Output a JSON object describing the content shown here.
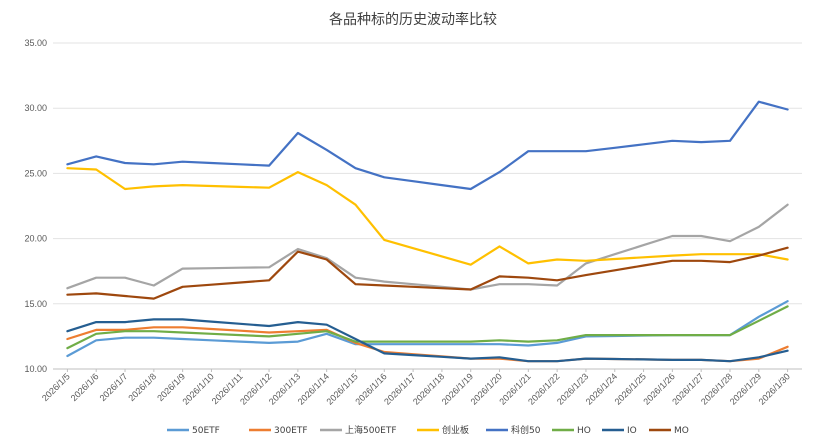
{
  "chart_data": {
    "type": "line",
    "title": "各品种标的历史波动率比较",
    "xlabel": "",
    "ylabel": "",
    "ylim": [
      10,
      35
    ],
    "yticks": [
      "10.00",
      "15.00",
      "20.00",
      "25.00",
      "30.00",
      "35.00"
    ],
    "grid": "horizontal",
    "legend_position": "bottom",
    "x": [
      "2026/1/5",
      "2026/1/6",
      "2026/1/7",
      "2026/1/8",
      "2026/1/9",
      "2026/1/10",
      "2026/1/11",
      "2026/1/12",
      "2026/1/13",
      "2026/1/14",
      "2026/1/15",
      "2026/1/16",
      "2026/1/17",
      "2026/1/18",
      "2026/1/19",
      "2026/1/20",
      "2026/1/21",
      "2026/1/22",
      "2026/1/23",
      "2026/1/24",
      "2026/1/25",
      "2026/1/26",
      "2026/1/27",
      "2026/1/28",
      "2026/1/29",
      "2026/1/30"
    ],
    "series": [
      {
        "name": "50ETF",
        "color": "#5b9bd5",
        "values": [
          11.0,
          12.2,
          12.4,
          12.4,
          12.3,
          null,
          null,
          12.0,
          12.1,
          12.7,
          11.9,
          11.9,
          null,
          null,
          11.9,
          11.9,
          11.8,
          12.0,
          12.5,
          null,
          null,
          12.6,
          12.6,
          12.6,
          14.0,
          15.2
        ]
      },
      {
        "name": "300ETF",
        "color": "#ed7d31",
        "values": [
          12.3,
          13.0,
          13.0,
          13.2,
          13.2,
          null,
          null,
          12.8,
          12.9,
          13.0,
          12.0,
          11.3,
          null,
          null,
          10.8,
          10.8,
          10.6,
          10.6,
          10.8,
          null,
          null,
          10.7,
          10.7,
          10.6,
          10.8,
          11.7
        ]
      },
      {
        "name": "上海500ETF",
        "color": "#a5a5a5",
        "values": [
          16.2,
          17.0,
          17.0,
          16.4,
          17.7,
          null,
          null,
          17.8,
          19.2,
          18.5,
          17.0,
          16.7,
          null,
          null,
          16.1,
          16.5,
          16.5,
          16.4,
          18.1,
          null,
          null,
          20.2,
          20.2,
          19.8,
          20.9,
          22.6
        ]
      },
      {
        "name": "创业板",
        "color": "#ffc000",
        "values": [
          25.4,
          25.3,
          23.8,
          24.0,
          24.1,
          null,
          null,
          23.9,
          25.1,
          24.1,
          22.6,
          19.9,
          null,
          null,
          18.0,
          19.4,
          18.1,
          18.4,
          18.3,
          null,
          null,
          18.7,
          18.8,
          18.8,
          18.8,
          18.4
        ]
      },
      {
        "name": "科创50",
        "color": "#4472c4",
        "values": [
          25.7,
          26.3,
          25.8,
          25.7,
          25.9,
          null,
          null,
          25.6,
          28.1,
          26.8,
          25.4,
          24.7,
          null,
          null,
          23.8,
          25.1,
          26.7,
          26.7,
          26.7,
          null,
          null,
          27.5,
          27.4,
          27.5,
          30.5,
          29.9
        ]
      },
      {
        "name": "HO",
        "color": "#70ad47",
        "values": [
          11.6,
          12.7,
          12.9,
          12.9,
          12.8,
          null,
          null,
          12.5,
          12.7,
          12.9,
          12.1,
          12.1,
          null,
          null,
          12.1,
          12.2,
          12.1,
          12.2,
          12.6,
          null,
          null,
          12.6,
          12.6,
          12.6,
          13.7,
          14.8
        ]
      },
      {
        "name": "IO",
        "color": "#255e91",
        "values": [
          12.9,
          13.6,
          13.6,
          13.8,
          13.8,
          null,
          null,
          13.3,
          13.6,
          13.4,
          12.3,
          11.2,
          null,
          null,
          10.8,
          10.9,
          10.6,
          10.6,
          10.8,
          null,
          null,
          10.7,
          10.7,
          10.6,
          10.9,
          11.4
        ]
      },
      {
        "name": "MO",
        "color": "#9e480e",
        "values": [
          15.7,
          15.8,
          15.6,
          15.4,
          16.3,
          null,
          null,
          16.8,
          19.0,
          18.4,
          16.5,
          16.4,
          null,
          null,
          16.1,
          17.1,
          17.0,
          16.8,
          17.2,
          null,
          null,
          18.3,
          18.3,
          18.2,
          18.7,
          19.3
        ]
      }
    ]
  }
}
